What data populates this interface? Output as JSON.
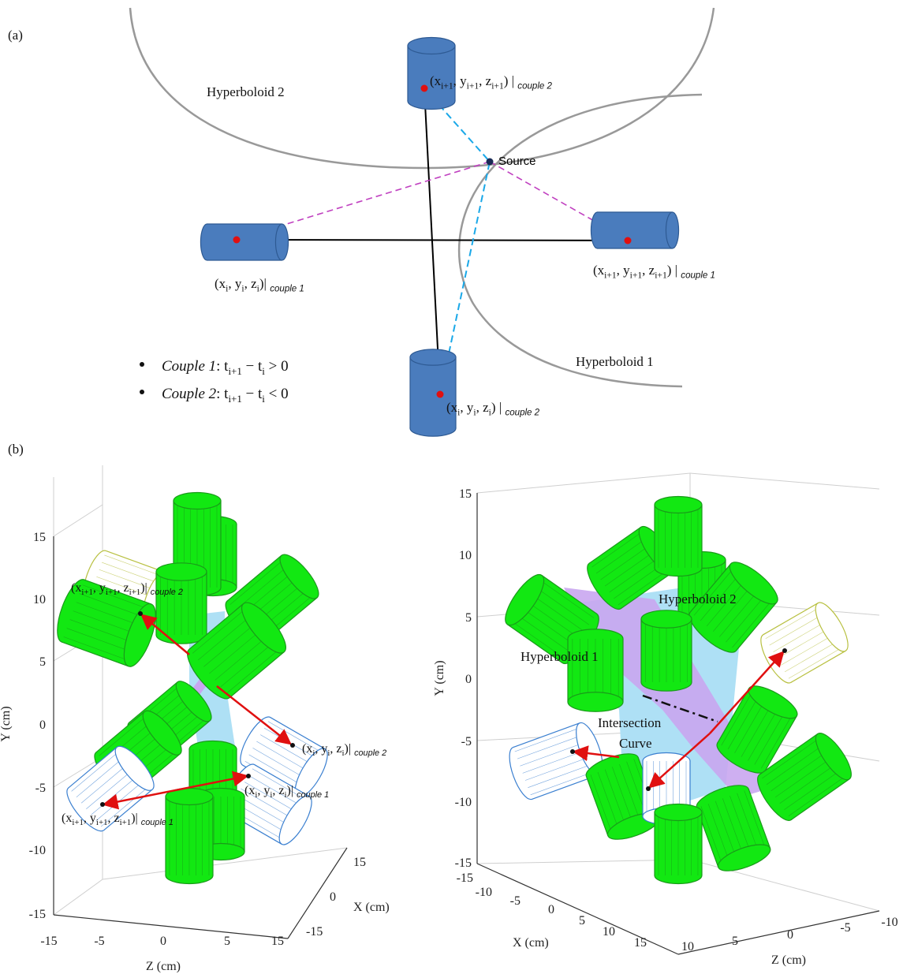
{
  "panel_a": {
    "label": "(a)",
    "hyperboloid_2": "Hyperboloid 2",
    "hyperboloid_1": "Hyperboloid 1",
    "source": "Source",
    "points": [
      {
        "parts": [
          "(x",
          "i+1",
          ", y",
          "i+1",
          ", z",
          "i+1",
          ") | "
        ],
        "tag": "couple 2"
      },
      {
        "parts": [
          "(x",
          "i",
          ", y",
          "i",
          ", z",
          "i",
          ")| "
        ],
        "tag": "couple 1"
      },
      {
        "parts": [
          "(x",
          "i+1",
          ", y",
          "i+1",
          ", z",
          "i+1",
          ") | "
        ],
        "tag": "couple 1"
      },
      {
        "parts": [
          "(x",
          "i",
          ", y",
          "i",
          ", z",
          "i",
          ") | "
        ],
        "tag": "couple 2"
      }
    ],
    "conditions": [
      {
        "couple": "Couple 1",
        "parts": [
          ": t",
          "i+1",
          " − t",
          "i",
          " > 0"
        ]
      },
      {
        "couple": "Couple 2",
        "parts": [
          ": t",
          "i+1",
          " − t",
          "i",
          " < 0"
        ]
      }
    ]
  },
  "panel_b": {
    "label": "(b)",
    "left": {
      "yticks": [
        15,
        10,
        5,
        0,
        -5,
        -10,
        -15
      ],
      "zticks": [
        -15,
        -5,
        0,
        5,
        15
      ],
      "xticks": [
        15,
        0,
        -15
      ],
      "ylabel": "Y (cm)",
      "xlabel": "X (cm)",
      "zlabel": "Z (cm)",
      "points": [
        {
          "parts": [
            "(x",
            "i+1",
            ", y",
            "i+1",
            ", z",
            "i+1",
            ")| "
          ],
          "tag": "couple 2"
        },
        {
          "parts": [
            "(x",
            "i",
            ", y",
            "i",
            ", z",
            "i",
            ")| "
          ],
          "tag": "couple 2"
        },
        {
          "parts": [
            "(x",
            "i",
            ", y",
            "i",
            ", z",
            "i",
            ")| "
          ],
          "tag": "couple 1"
        },
        {
          "parts": [
            "(x",
            "i+1",
            ", y",
            "i+1",
            ", z",
            "i+1",
            ")| "
          ],
          "tag": "couple 1"
        }
      ]
    },
    "right": {
      "yticks": [
        15,
        10,
        5,
        0,
        -5,
        -10,
        -15
      ],
      "xticks": [
        -15,
        -10,
        -5,
        0,
        5,
        10,
        15
      ],
      "zticks": [
        10,
        5,
        0,
        -5,
        -10
      ],
      "ylabel": "Y (cm)",
      "xlabel": "X (cm)",
      "zlabel": "Z (cm)",
      "hyperboloid_2": "Hyperboloid 2",
      "hyperboloid_1": "Hyperboloid 1",
      "intersection": [
        "Intersection",
        "Curve"
      ]
    }
  }
}
